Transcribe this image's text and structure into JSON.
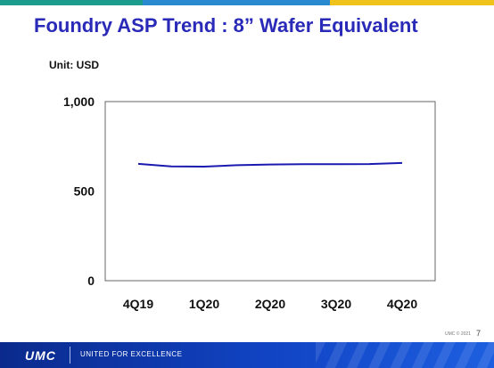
{
  "slide": {
    "title": "Foundry ASP Trend : 8” Wafer Equivalent",
    "unit": "Unit: USD",
    "page_number": "7",
    "copyright": "UMC © 2021"
  },
  "footer": {
    "logo": "UMC",
    "tagline": "UNITED FOR EXCELLENCE"
  },
  "colors": {
    "title": "#2a2ab8",
    "line": "#1a1ab0",
    "topbar": [
      "#1c9c8c",
      "#2a8ad0",
      "#f0c21c"
    ]
  },
  "chart_data": {
    "type": "line",
    "title": "",
    "xlabel": "",
    "ylabel": "",
    "categories": [
      "4Q19",
      "1Q20",
      "2Q20",
      "3Q20",
      "4Q20"
    ],
    "x": [
      0,
      0.5,
      1,
      1.5,
      2,
      2.5,
      3,
      3.5,
      4
    ],
    "values": [
      652,
      638,
      637,
      645,
      649,
      650,
      650,
      651,
      657
    ],
    "ylim": [
      0,
      1000
    ],
    "yticks": [
      0,
      500,
      1000
    ],
    "ytick_labels": [
      "0",
      "500",
      "1,000"
    ],
    "grid": false,
    "legend": "none"
  }
}
